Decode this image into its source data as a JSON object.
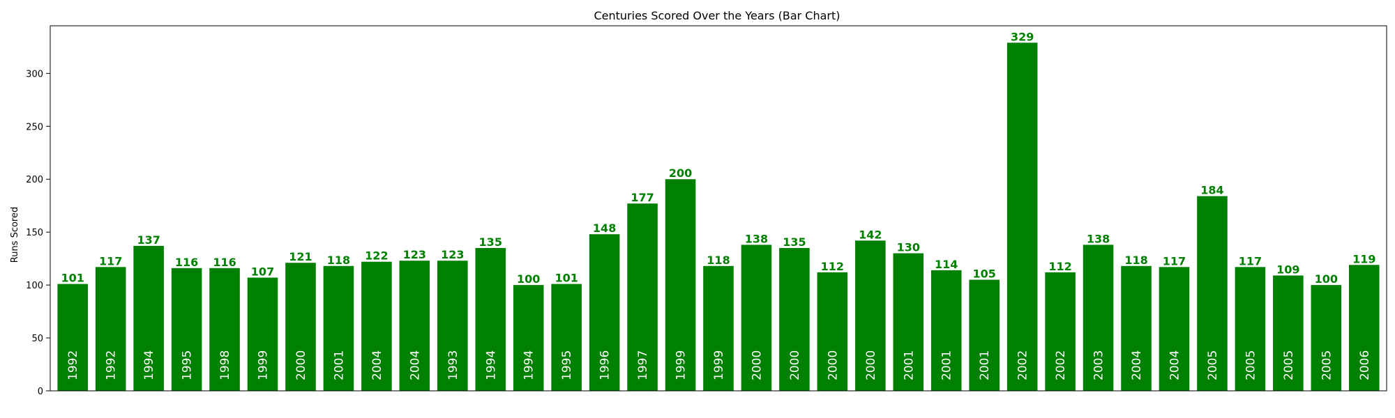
{
  "chart_data": {
    "type": "bar",
    "title": "Centuries Scored Over the Years (Bar Chart)",
    "xlabel": "",
    "ylabel": "Runs Scored",
    "ylim": [
      0,
      345
    ],
    "yticks": [
      0,
      50,
      100,
      150,
      200,
      250,
      300
    ],
    "grid": false,
    "bar_color": "#008000",
    "value_label_color": "#008000",
    "category_label_color": "#ffffff",
    "categories": [
      "1992",
      "1992",
      "1994",
      "1995",
      "1998",
      "1999",
      "2000",
      "2001",
      "2004",
      "2004",
      "1993",
      "1994",
      "1994",
      "1995",
      "1996",
      "1997",
      "1999",
      "1999",
      "2000",
      "2000",
      "2000",
      "2000",
      "2001",
      "2001",
      "2001",
      "2002",
      "2002",
      "2003",
      "2004",
      "2004",
      "2005",
      "2005",
      "2005",
      "2005",
      "2006"
    ],
    "values": [
      101,
      117,
      137,
      116,
      116,
      107,
      121,
      118,
      122,
      123,
      123,
      135,
      100,
      101,
      148,
      177,
      200,
      118,
      138,
      135,
      112,
      142,
      130,
      114,
      105,
      329,
      112,
      138,
      118,
      117,
      184,
      117,
      109,
      100,
      119
    ]
  }
}
